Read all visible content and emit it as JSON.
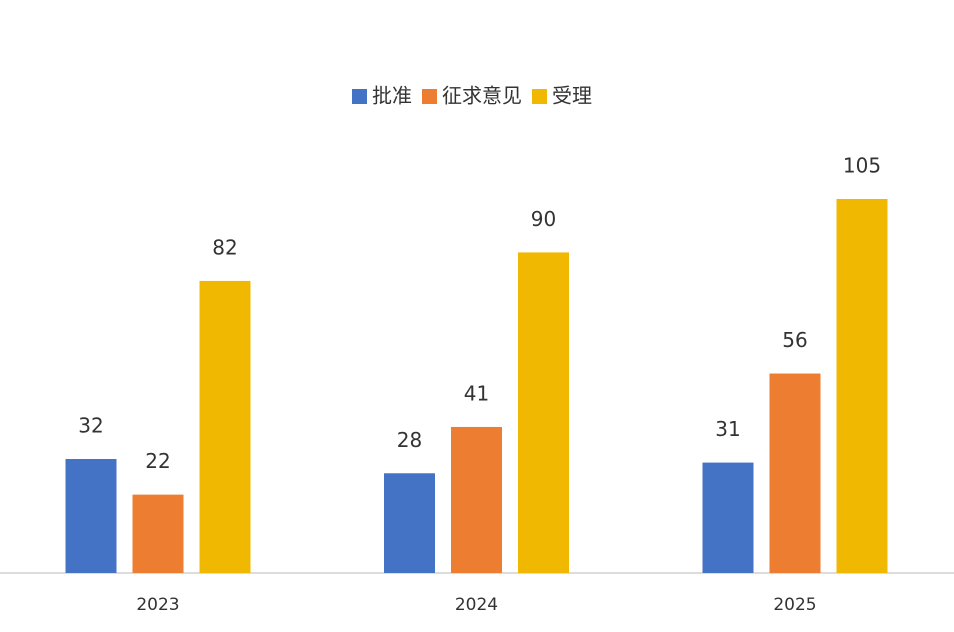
{
  "chart_data": {
    "type": "bar",
    "categories": [
      "2023",
      "2024",
      "2025"
    ],
    "series": [
      {
        "name": "批准",
        "color": "#4472c4",
        "values": [
          32,
          28,
          31
        ]
      },
      {
        "name": "征求意见",
        "color": "#ed7d31",
        "values": [
          22,
          41,
          56
        ]
      },
      {
        "name": "受理",
        "color": "#f0b800",
        "values": [
          82,
          90,
          105
        ]
      }
    ],
    "legend": "top"
  }
}
